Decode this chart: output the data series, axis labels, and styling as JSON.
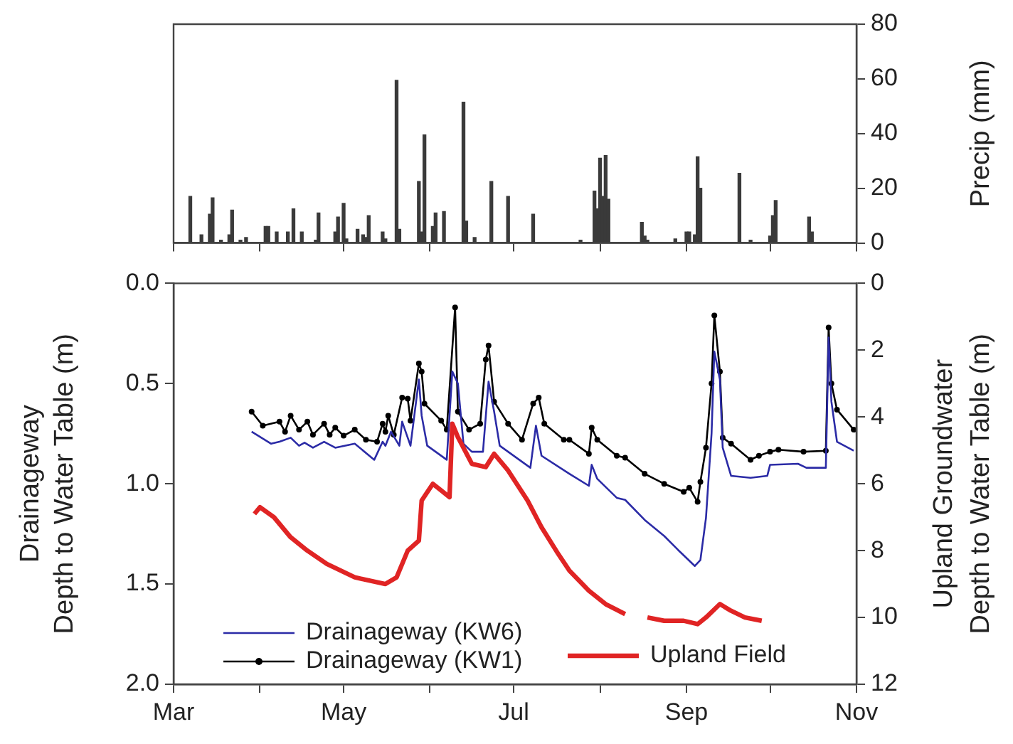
{
  "chart_data": [
    {
      "type": "bar",
      "ylabel": "Precip (mm)",
      "color": "#3a3a3a",
      "tick_labels": "y",
      "xlim": [
        "--03-01",
        "--11-01"
      ],
      "xticks": [
        {
          "value": "--03-01",
          "label": null
        },
        {
          "value": "--04-01",
          "label": null
        },
        {
          "value": "--05-01",
          "label": null
        },
        {
          "value": "--06-01",
          "label": null
        },
        {
          "value": "--07-01",
          "label": null
        },
        {
          "value": "--08-01",
          "label": null
        },
        {
          "value": "--09-01",
          "label": null
        },
        {
          "value": "--10-01",
          "label": null
        },
        {
          "value": "--11-01",
          "label": null
        }
      ],
      "ylim": [
        0,
        80
      ],
      "yticks": [
        0,
        20,
        40,
        60,
        80
      ],
      "x": [
        "--03-07",
        "--03-11",
        "--03-14",
        "--03-15",
        "--03-18",
        "--03-21",
        "--03-22",
        "--03-25",
        "--03-27",
        "--04-03",
        "--04-04",
        "--04-07",
        "--04-11",
        "--04-13",
        "--04-16",
        "--04-21",
        "--04-22",
        "--04-28",
        "--04-29",
        "--05-01",
        "--05-02",
        "--05-06",
        "--05-08",
        "--05-09",
        "--05-10",
        "--05-15",
        "--05-16",
        "--05-20",
        "--05-21",
        "--05-28",
        "--05-29",
        "--05-30",
        "--06-02",
        "--06-03",
        "--06-06",
        "--06-13",
        "--06-14",
        "--06-17",
        "--06-23",
        "--06-29",
        "--07-08",
        "--07-25",
        "--07-30",
        "--07-31",
        "--08-01",
        "--08-02",
        "--08-03",
        "--08-04",
        "--08-16",
        "--08-17",
        "--08-18",
        "--08-28",
        "--09-01",
        "--09-02",
        "--09-04",
        "--09-05",
        "--09-06",
        "--09-20",
        "--09-24",
        "--10-01",
        "--10-02",
        "--10-03",
        "--10-15",
        "--10-16"
      ],
      "values": [
        17,
        3,
        10.5,
        16.5,
        1,
        3,
        12,
        1,
        2,
        6,
        6,
        4,
        4,
        12.5,
        4,
        1,
        11,
        4,
        9.5,
        14.5,
        1.5,
        5,
        3,
        2,
        10,
        4,
        1.5,
        59.5,
        5,
        22.5,
        4,
        39.5,
        6,
        11,
        11.5,
        51.5,
        8,
        2,
        22.5,
        17,
        10.5,
        1,
        19,
        12.5,
        31,
        17,
        32,
        16,
        7.5,
        2.5,
        1,
        1.5,
        4,
        4,
        3,
        31.5,
        20,
        25.5,
        1,
        2.5,
        10,
        15.5,
        9.5,
        4
      ]
    },
    {
      "type": "line",
      "ylabel": "Drainageway\nDepth to Water Table (m)",
      "y2label": "Upland Groundwater\nDepth to Water Table (m)",
      "legend": "bottom left",
      "xlim": [
        "--03-01",
        "--11-01"
      ],
      "xticks": [
        {
          "value": "--03-01",
          "label": "Mar"
        },
        {
          "value": "--04-01",
          "label": null
        },
        {
          "value": "--05-01",
          "label": "May"
        },
        {
          "value": "--06-01",
          "label": null
        },
        {
          "value": "--07-01",
          "label": "Jul"
        },
        {
          "value": "--08-01",
          "label": null
        },
        {
          "value": "--09-01",
          "label": "Sep"
        },
        {
          "value": "--10-01",
          "label": null
        },
        {
          "value": "--11-01",
          "label": "Nov"
        }
      ],
      "ylim": [
        2,
        0
      ],
      "yticks": [
        {
          "value": 0,
          "label": "0.0"
        },
        {
          "value": 0.5,
          "label": "0.5"
        },
        {
          "value": 1,
          "label": "1.0"
        },
        {
          "value": 1.5,
          "label": "1.5"
        },
        {
          "value": 2,
          "label": "2.0"
        }
      ],
      "y2lim": [
        12,
        0
      ],
      "y2ticks": [
        0,
        2,
        4,
        6,
        8,
        10,
        12
      ],
      "series": [
        {
          "name": "Drainageway (KW6)",
          "color": "#2b2ba6",
          "marker": "none",
          "x": [
            "--03-29",
            "--04-05",
            "--04-08",
            "--04-12",
            "--04-15",
            "--04-17",
            "--04-20",
            "--04-24",
            "--04-28",
            "--05-05",
            "--05-12",
            "--05-15",
            "--05-16",
            "--05-18",
            "--05-21",
            "--05-22",
            "--05-25",
            "--05-28",
            "--05-29",
            "--05-31",
            "--06-07",
            "--06-09",
            "--06-11",
            "--06-13",
            "--06-16",
            "--06-20",
            "--06-22",
            "--06-24",
            "--06-26",
            "--07-07",
            "--07-09",
            "--07-11",
            "--07-21",
            "--07-28",
            "--07-29",
            "--07-31",
            "--08-07",
            "--08-10",
            "--08-17",
            "--08-24",
            "--08-29",
            "--09-04",
            "--09-06",
            "--09-08",
            "--09-10",
            "--09-11",
            "--09-13",
            "--09-14",
            "--09-17",
            "--09-24",
            "--09-30",
            "--10-01",
            "--10-11",
            "--10-14",
            "--10-21",
            "--10-22",
            "--10-23",
            "--10-25",
            "--10-31"
          ],
          "values": [
            0.74,
            0.8,
            0.79,
            0.77,
            0.81,
            0.795,
            0.82,
            0.79,
            0.82,
            0.8,
            0.88,
            0.79,
            0.81,
            0.74,
            0.81,
            0.69,
            0.81,
            0.48,
            0.66,
            0.81,
            0.88,
            0.44,
            0.5,
            0.8,
            0.84,
            0.84,
            0.49,
            0.64,
            0.81,
            0.92,
            0.71,
            0.86,
            0.95,
            1.01,
            0.905,
            0.975,
            1.07,
            1.08,
            1.18,
            1.26,
            1.33,
            1.41,
            1.38,
            1.17,
            0.75,
            0.34,
            0.48,
            0.82,
            0.96,
            0.97,
            0.96,
            0.905,
            0.9,
            0.92,
            0.92,
            0.27,
            0.59,
            0.79,
            0.835
          ]
        },
        {
          "name": "Drainageway (KW1)",
          "color": "#000000",
          "marker": "circle",
          "x": [
            "--03-29",
            "--04-02",
            "--04-08",
            "--04-10",
            "--04-12",
            "--04-15",
            "--04-18",
            "--04-20",
            "--04-24",
            "--04-26",
            "--04-28",
            "--05-01",
            "--05-05",
            "--05-09",
            "--05-13",
            "--05-15",
            "--05-16",
            "--05-17",
            "--05-19",
            "--05-22",
            "--05-24",
            "--05-25",
            "--05-28",
            "--05-29",
            "--05-30",
            "--06-05",
            "--06-07",
            "--06-10",
            "--06-11",
            "--06-15",
            "--06-19",
            "--06-21",
            "--06-22",
            "--06-24",
            "--06-29",
            "--07-04",
            "--07-08",
            "--07-10",
            "--07-12",
            "--07-19",
            "--07-21",
            "--07-28",
            "--07-29",
            "--07-31",
            "--08-07",
            "--08-10",
            "--08-17",
            "--08-24",
            "--08-31",
            "--09-02",
            "--09-05",
            "--09-06",
            "--09-08",
            "--09-10",
            "--09-11",
            "--09-13",
            "--09-14",
            "--09-17",
            "--09-24",
            "--09-27",
            "--10-01",
            "--10-04",
            "--10-13",
            "--10-21",
            "--10-22",
            "--10-23",
            "--10-25",
            "--10-31"
          ],
          "values": [
            0.64,
            0.71,
            0.69,
            0.74,
            0.66,
            0.73,
            0.69,
            0.755,
            0.7,
            0.755,
            0.72,
            0.76,
            0.73,
            0.78,
            0.79,
            0.7,
            0.74,
            0.66,
            0.755,
            0.57,
            0.575,
            0.685,
            0.4,
            0.44,
            0.6,
            0.685,
            0.73,
            0.12,
            0.64,
            0.73,
            0.7,
            0.38,
            0.31,
            0.59,
            0.7,
            0.78,
            0.6,
            0.57,
            0.7,
            0.78,
            0.78,
            0.85,
            0.72,
            0.78,
            0.86,
            0.87,
            0.95,
            1.0,
            1.04,
            1.02,
            1.09,
            0.99,
            0.82,
            0.5,
            0.16,
            0.44,
            0.77,
            0.8,
            0.88,
            0.86,
            0.84,
            0.83,
            0.84,
            0.835,
            0.22,
            0.5,
            0.63,
            0.73
          ]
        },
        {
          "name": "Upland Field",
          "color": "#e02424",
          "marker": "none",
          "axis": "y2",
          "x": [
            "--03-30",
            "--04-01",
            "--04-06",
            "--04-12",
            "--04-18",
            "--04-25",
            "--05-05",
            "--05-16",
            "--05-20",
            "--05-24",
            "--05-28",
            "--05-29",
            "--06-02",
            "--06-05",
            "--06-08",
            "--06-09",
            "--06-11",
            "--06-16",
            "--06-21",
            "--06-24",
            "--06-29",
            "--07-06",
            "--07-11",
            "--07-17",
            "--07-21",
            "--07-28",
            "--08-03",
            "--08-10",
            "--08-14",
            "--08-18",
            "--08-24",
            "--08-31",
            "--09-05",
            "--09-08",
            "--09-13",
            "--09-17",
            "--09-22",
            "--09-28"
          ],
          "values": [
            6.9,
            6.7,
            7.0,
            7.6,
            8.0,
            8.4,
            8.8,
            9.0,
            8.8,
            8.0,
            7.7,
            6.5,
            6.0,
            6.2,
            6.4,
            4.2,
            4.6,
            5.4,
            5.5,
            5.1,
            5.6,
            6.5,
            7.3,
            8.1,
            8.6,
            9.2,
            9.6,
            9.9,
            null,
            10.0,
            10.1,
            10.1,
            10.2,
            10.0,
            9.6,
            9.8,
            10.0,
            10.1
          ]
        }
      ]
    }
  ]
}
